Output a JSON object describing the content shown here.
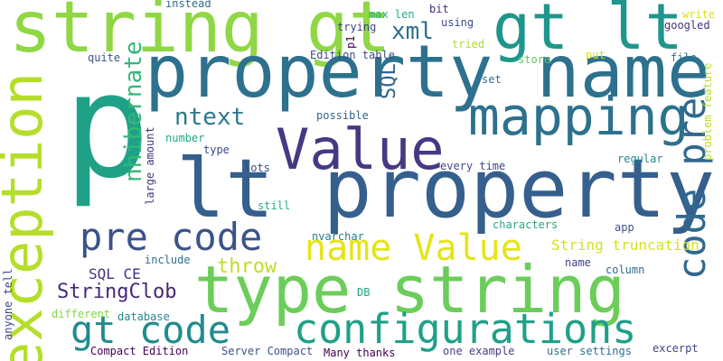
{
  "words": [
    {
      "text": "p",
      "color": "#1fa187"
    },
    {
      "text": "string gt",
      "color": "#8fd744"
    },
    {
      "text": "gt lt",
      "color": "#1f968b"
    },
    {
      "text": "property name",
      "color": "#2d718e"
    },
    {
      "text": "exception",
      "color": "#b5de2b"
    },
    {
      "text": "lt property",
      "color": "#355f8d"
    },
    {
      "text": "Value",
      "color": "#443a83"
    },
    {
      "text": "type string",
      "color": "#6ccd5a"
    },
    {
      "text": "mapping",
      "color": "#2c718e"
    },
    {
      "text": "pre code",
      "color": "#3b528b"
    },
    {
      "text": "code pre",
      "color": "#31688e"
    },
    {
      "text": "configurations",
      "color": "#1fa088"
    },
    {
      "text": "gt code",
      "color": "#228b8d"
    },
    {
      "text": "name Value",
      "color": "#e5e419"
    },
    {
      "text": "nhibernate",
      "color": "#35b779"
    },
    {
      "text": "ntext",
      "color": "#2a788e"
    },
    {
      "text": "xml",
      "color": "#2d708e"
    },
    {
      "text": "SQL",
      "color": "#33628d"
    },
    {
      "text": "StringClob",
      "color": "#482878"
    },
    {
      "text": "throw",
      "color": "#bddf26"
    },
    {
      "text": "String truncation",
      "color": "#d5e21a"
    },
    {
      "text": "SQL CE",
      "color": "#46327e"
    },
    {
      "text": "instead",
      "color": "#31688e"
    },
    {
      "text": "bit",
      "color": "#472d7b"
    },
    {
      "text": "max len",
      "color": "#25ab82"
    },
    {
      "text": "using",
      "color": "#3e4989"
    },
    {
      "text": "trying",
      "color": "#414487"
    },
    {
      "text": "p1",
      "color": "#440154"
    },
    {
      "text": "write",
      "color": "#d8e219"
    },
    {
      "text": "googled",
      "color": "#46327e"
    },
    {
      "text": "tried",
      "color": "#addc30"
    },
    {
      "text": "Edition table",
      "color": "#3e4a89"
    },
    {
      "text": "store",
      "color": "#5ec962"
    },
    {
      "text": "put",
      "color": "#d0e11c"
    },
    {
      "text": "file",
      "color": "#2d708e"
    },
    {
      "text": "quite",
      "color": "#3b528b"
    },
    {
      "text": "set",
      "color": "#2e6f8e"
    },
    {
      "text": "problem feature",
      "color": "#b8de29"
    },
    {
      "text": "possible",
      "color": "#33638d"
    },
    {
      "text": "large amount",
      "color": "#453581"
    },
    {
      "text": "number",
      "color": "#21a685"
    },
    {
      "text": "type",
      "color": "#3e4989"
    },
    {
      "text": "regular",
      "color": "#25858e"
    },
    {
      "text": "lots",
      "color": "#3e4a89"
    },
    {
      "text": "every time",
      "color": "#3f4788"
    },
    {
      "text": "still",
      "color": "#27ad81"
    },
    {
      "text": "characters",
      "color": "#22a785"
    },
    {
      "text": "app",
      "color": "#3b528b"
    },
    {
      "text": "nvarchar",
      "color": "#287d8e"
    },
    {
      "text": "include",
      "color": "#2c718e"
    },
    {
      "text": "name",
      "color": "#414487"
    },
    {
      "text": "column",
      "color": "#31688e"
    },
    {
      "text": "anyone tell",
      "color": "#3e4989"
    },
    {
      "text": "DB",
      "color": "#21a685"
    },
    {
      "text": "different",
      "color": "#84d44b"
    },
    {
      "text": "database",
      "color": "#24878e"
    },
    {
      "text": "Compact Edition",
      "color": "#440154"
    },
    {
      "text": "Server Compact",
      "color": "#3b528b"
    },
    {
      "text": "Many thanks",
      "color": "#440154"
    },
    {
      "text": "one example",
      "color": "#433e85"
    },
    {
      "text": "user settings",
      "color": "#2c718e"
    },
    {
      "text": "excerpt",
      "color": "#3e4989"
    }
  ]
}
